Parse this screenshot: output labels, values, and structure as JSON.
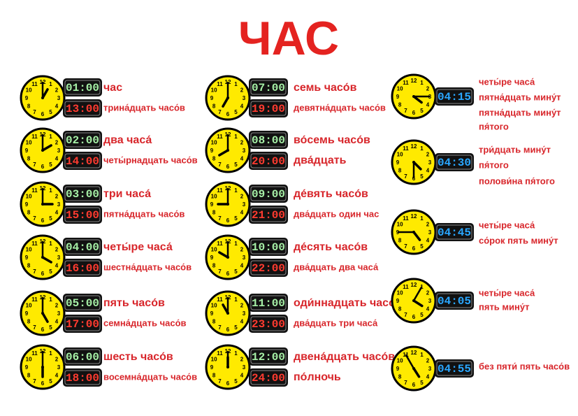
{
  "title": "ЧАС",
  "clock_numerals": [
    "12",
    "1",
    "2",
    "3",
    "4",
    "5",
    "6",
    "7",
    "8",
    "9",
    "10",
    "11"
  ],
  "hours": [
    {
      "day": "01:00",
      "night": "13:00",
      "day_label": "час",
      "night_label": "трина́дцать часо́в"
    },
    {
      "day": "02:00",
      "night": "14:00",
      "day_label": "два часа́",
      "night_label": "четы́рнадцать часо́в"
    },
    {
      "day": "03:00",
      "night": "15:00",
      "day_label": "три часа́",
      "night_label": "пятна́дцать часо́в"
    },
    {
      "day": "04:00",
      "night": "16:00",
      "day_label": "четы́ре часа́",
      "night_label": "шестна́дцать  часо́в"
    },
    {
      "day": "05:00",
      "night": "17:00",
      "day_label": "пять часо́в",
      "night_label": "семна́дцать часо́в"
    },
    {
      "day": "06:00",
      "night": "18:00",
      "day_label": "шесть часо́в",
      "night_label": "восемна́дцать часо́в"
    },
    {
      "day": "07:00",
      "night": "19:00",
      "day_label": "семь часо́в",
      "night_label": "девятна́дцать часо́в"
    },
    {
      "day": "08:00",
      "night": "20:00",
      "day_label": "во́семь часо́в",
      "night_label": "два́дцать"
    },
    {
      "day": "09:00",
      "night": "21:00",
      "day_label": "де́вять часо́в",
      "night_label": "два́дцать один час"
    },
    {
      "day": "10:00",
      "night": "22:00",
      "day_label": "де́сять часо́в",
      "night_label": "два́дцать два часа́"
    },
    {
      "day": "11:00",
      "night": "23:00",
      "day_label": "оди́ннадцать часо́в",
      "night_label": "два́дцать три часа́"
    },
    {
      "day": "12:00",
      "night": "24:00",
      "day_label": "двена́дцать часо́в",
      "night_label": "по́лночь"
    }
  ],
  "minutes": [
    {
      "time": "04:15",
      "lines": [
        "четы́ре часа́",
        "пятна́дцать мину́т",
        "пятна́дцать мину́т",
        "пя́того"
      ]
    },
    {
      "time": "04:30",
      "lines": [
        "три́дцать мину́т",
        "пя́того",
        "полови́на пя́того"
      ]
    },
    {
      "time": "04:45",
      "lines": [
        "четы́ре часа́",
        "со́рок пять мину́т"
      ]
    },
    {
      "time": "04:05",
      "lines": [
        "четы́ре часа́",
        "пять мину́т"
      ]
    },
    {
      "time": "04:55",
      "lines": [
        "без пяти́ пять часо́в"
      ]
    }
  ]
}
